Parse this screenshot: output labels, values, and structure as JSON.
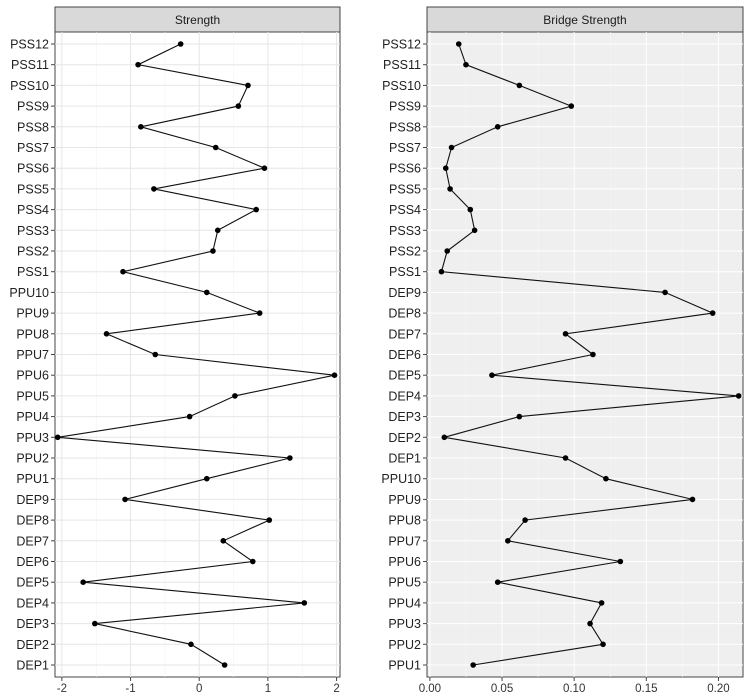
{
  "chart_data": [
    {
      "type": "line",
      "title": "Strength",
      "categories": [
        "DEP1",
        "DEP2",
        "DEP3",
        "DEP4",
        "DEP5",
        "DEP6",
        "DEP7",
        "DEP8",
        "DEP9",
        "PPU1",
        "PPU2",
        "PPU3",
        "PPU4",
        "PPU5",
        "PPU6",
        "PPU7",
        "PPU8",
        "PPU9",
        "PPU10",
        "PSS1",
        "PSS2",
        "PSS3",
        "PSS4",
        "PSS5",
        "PSS6",
        "PSS7",
        "PSS8",
        "PSS9",
        "PSS10",
        "PSS11",
        "PSS12"
      ],
      "values": [
        0.37,
        -0.12,
        -1.52,
        1.53,
        -1.69,
        0.78,
        0.35,
        1.02,
        -1.08,
        0.11,
        1.32,
        -2.06,
        -0.14,
        0.52,
        1.97,
        -0.64,
        -1.35,
        0.88,
        0.11,
        -1.11,
        0.2,
        0.27,
        0.83,
        -0.66,
        0.95,
        0.24,
        -0.85,
        0.57,
        0.71,
        -0.89,
        -0.27
      ],
      "xlim": [
        -2.1,
        2.05
      ],
      "xticks": [
        "-2",
        "-1",
        "0",
        "1",
        "2"
      ],
      "grid": true,
      "background": "#ffffff"
    },
    {
      "type": "line",
      "title": "Bridge Strength",
      "categories": [
        "PPU1",
        "PPU2",
        "PPU3",
        "PPU4",
        "PPU5",
        "PPU6",
        "PPU7",
        "PPU8",
        "PPU9",
        "PPU10",
        "DEP1",
        "DEP2",
        "DEP3",
        "DEP4",
        "DEP5",
        "DEP6",
        "DEP7",
        "DEP8",
        "DEP9",
        "PSS1",
        "PSS2",
        "PSS3",
        "PSS4",
        "PSS5",
        "PSS6",
        "PSS7",
        "PSS8",
        "PSS9",
        "PSS10",
        "PSS11",
        "PSS12"
      ],
      "values": [
        0.03,
        0.12,
        0.111,
        0.119,
        0.047,
        0.132,
        0.054,
        0.066,
        0.182,
        0.122,
        0.094,
        0.01,
        0.062,
        0.214,
        0.043,
        0.113,
        0.094,
        0.196,
        0.163,
        0.008,
        0.012,
        0.031,
        0.028,
        0.014,
        0.011,
        0.015,
        0.047,
        0.098,
        0.062,
        0.025,
        0.02
      ],
      "xlim": [
        -0.002,
        0.217
      ],
      "xticks": [
        "0.00",
        "0.05",
        "0.10",
        "0.15",
        "0.20"
      ],
      "grid": true,
      "background": "#efefef"
    }
  ]
}
